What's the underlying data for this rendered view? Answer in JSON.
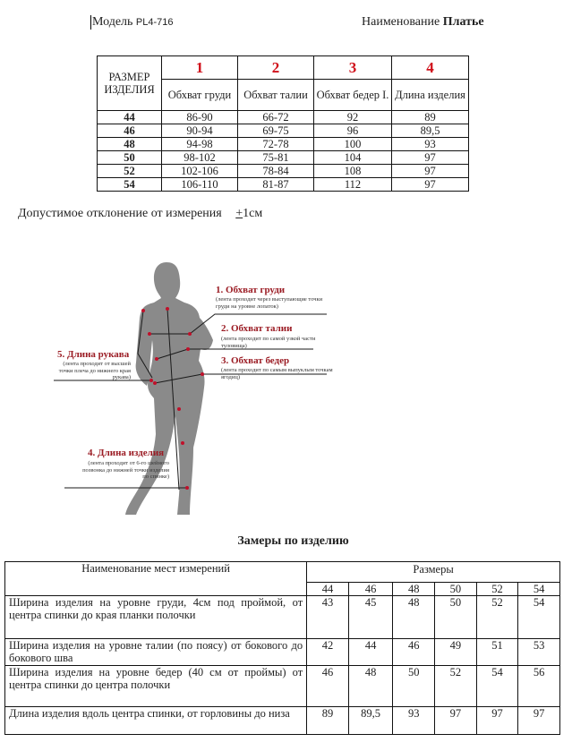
{
  "header": {
    "model_label": "Модель",
    "model_value": "PL4-716",
    "name_label": "Наименование",
    "name_value": "Платье"
  },
  "size_table": {
    "size_header": "РАЗМЕР ИЗДЕЛИЯ",
    "numbers": [
      "1",
      "2",
      "3",
      "4"
    ],
    "columns": [
      "Обхват груди",
      "Обхват талии",
      "Обхват бедер I.",
      "Длина изделия"
    ],
    "rows": [
      [
        "44",
        "86-90",
        "66-72",
        "92",
        "89"
      ],
      [
        "46",
        "90-94",
        "69-75",
        "96",
        "89,5"
      ],
      [
        "48",
        "94-98",
        "72-78",
        "100",
        "93"
      ],
      [
        "50",
        "98-102",
        "75-81",
        "104",
        "97"
      ],
      [
        "52",
        "102-106",
        "78-84",
        "108",
        "97"
      ],
      [
        "54",
        "106-110",
        "81-87",
        "112",
        "97"
      ]
    ]
  },
  "tolerance": {
    "text": "Допустимое отклонение от измерения",
    "value_sign": "+",
    "value": "1см"
  },
  "figure": {
    "labels": [
      {
        "title": "1. Обхват груди",
        "desc": "(лента проходит через выступающие точки груди на уровне лопаток)"
      },
      {
        "title": "2. Обхват талии",
        "desc": "(лента проходит по самой узкой части туловища)"
      },
      {
        "title": "3. Обхват бедер",
        "desc": "(лента проходит по самым выпуклым точкам ягодиц)"
      },
      {
        "title": "4. Длина изделия",
        "desc": "(лента проходит от 6-го шейного позвонка до нижней точки изделия по спинке)"
      },
      {
        "title": "5. Длина рукава",
        "desc": "(лента проходит от высшей точки плеча до нижнего края рукава)"
      }
    ],
    "accent_color": "#9b1c24"
  },
  "measure_table": {
    "title": "Замеры по изделию",
    "name_header": "Наименование мест измерений",
    "sizes_header": "Размеры",
    "sizes": [
      "44",
      "46",
      "48",
      "50",
      "52",
      "54"
    ],
    "rows": [
      {
        "name": "Ширина изделия на уровне груди, 4см под проймой, от центра спинки до края планки полочки",
        "values": [
          "43",
          "45",
          "48",
          "50",
          "52",
          "54"
        ]
      },
      {
        "name": "Ширина изделия на уровне талии (по поясу) от бокового до бокового шва",
        "values": [
          "42",
          "44",
          "46",
          "49",
          "51",
          "53"
        ]
      },
      {
        "name": "Ширина изделия на уровне бедер (40 см от проймы) от центра спинки до центра полочки",
        "values": [
          "46",
          "48",
          "50",
          "52",
          "54",
          "56"
        ]
      },
      {
        "name": "Длина изделия вдоль центра спинки, от горловины до низа",
        "values": [
          "89",
          "89,5",
          "93",
          "97",
          "97",
          "97"
        ]
      }
    ]
  }
}
